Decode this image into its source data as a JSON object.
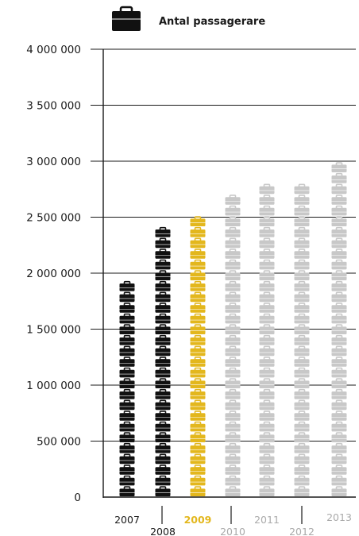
{
  "chart_data": {
    "type": "bar",
    "title": "",
    "xlabel": "",
    "ylabel": "",
    "legend": {
      "label": "Antal passagerare",
      "placement": "top",
      "icon": "suitcase-icon"
    },
    "categories": [
      "2007",
      "2008",
      "2009",
      "2010",
      "2011",
      "2012",
      "2013"
    ],
    "values": [
      1960000,
      2480000,
      2560000,
      2740000,
      2820000,
      2880000,
      2980000
    ],
    "bar_colors": [
      "#111111",
      "#111111",
      "#e3b71d",
      "#c8c8c8",
      "#c8c8c8",
      "#c8c8c8",
      "#c8c8c8"
    ],
    "label_colors": [
      "#1a1a1a",
      "#1a1a1a",
      "#e3b71d",
      "#aaaaaa",
      "#aaaaaa",
      "#aaaaaa",
      "#aaaaaa"
    ],
    "ylim": [
      0,
      4000000
    ],
    "yticks": [
      0,
      500000,
      1000000,
      1500000,
      2000000,
      2500000,
      3000000,
      3500000,
      4000000
    ],
    "ytick_labels": [
      "0",
      "500 000",
      "1 000 000",
      "1 500 000",
      "2 000 000",
      "2 500 000",
      "3 000 000",
      "3 500 000",
      "4 000 000"
    ],
    "grid": true,
    "mark": "stacked-suitcase-icons"
  }
}
